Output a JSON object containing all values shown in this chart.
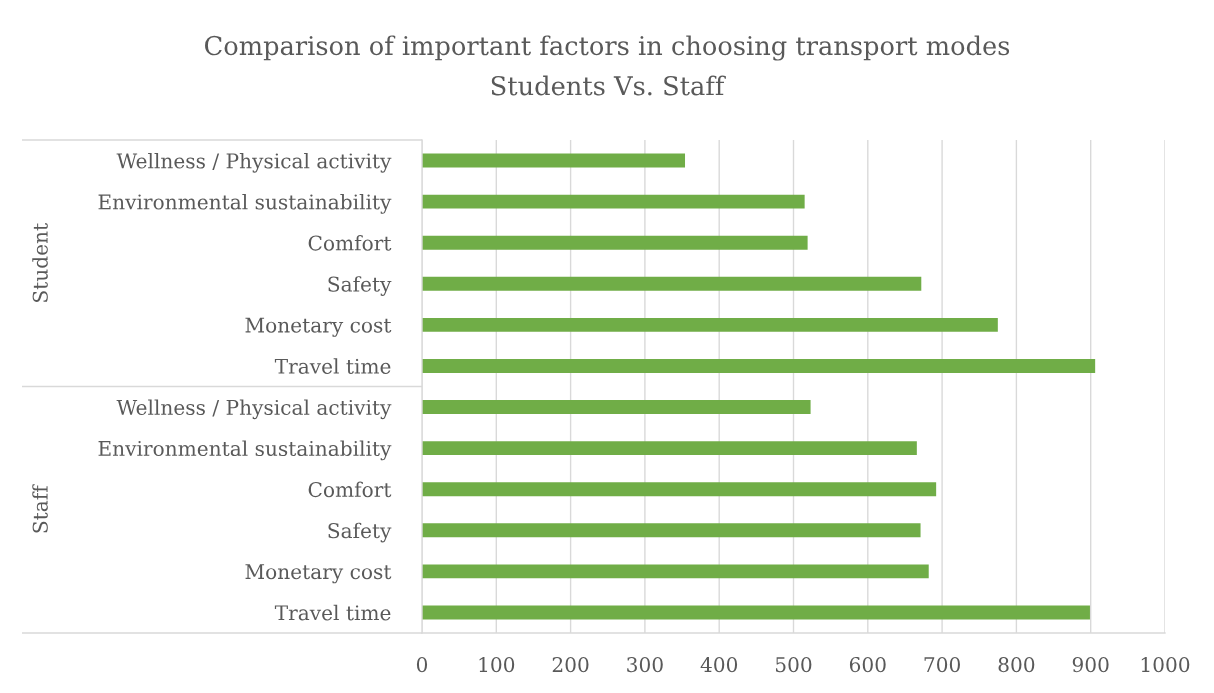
{
  "chart_data": {
    "type": "bar",
    "orientation": "horizontal",
    "title": "Comparison of important factors in choosing transport modes",
    "subtitle": "Students Vs. Staff",
    "categories": [
      "Wellness / Physical activity",
      "Environmental sustainability",
      "Comfort",
      "Safety",
      "Monetary cost",
      "Travel time",
      "Wellness / Physical activity",
      "Environmental sustainability",
      "Comfort",
      "Safety",
      "Monetary cost",
      "Travel time"
    ],
    "values": [
      354,
      515,
      519,
      672,
      775,
      906,
      523,
      666,
      692,
      671,
      682,
      899
    ],
    "color": "#70ad47",
    "xlim": [
      0,
      1000
    ],
    "xticks": [
      0,
      100,
      200,
      300,
      400,
      500,
      600,
      700,
      800,
      900,
      1000
    ],
    "grid": "x",
    "annotations": [
      "Student",
      "Staff"
    ]
  }
}
